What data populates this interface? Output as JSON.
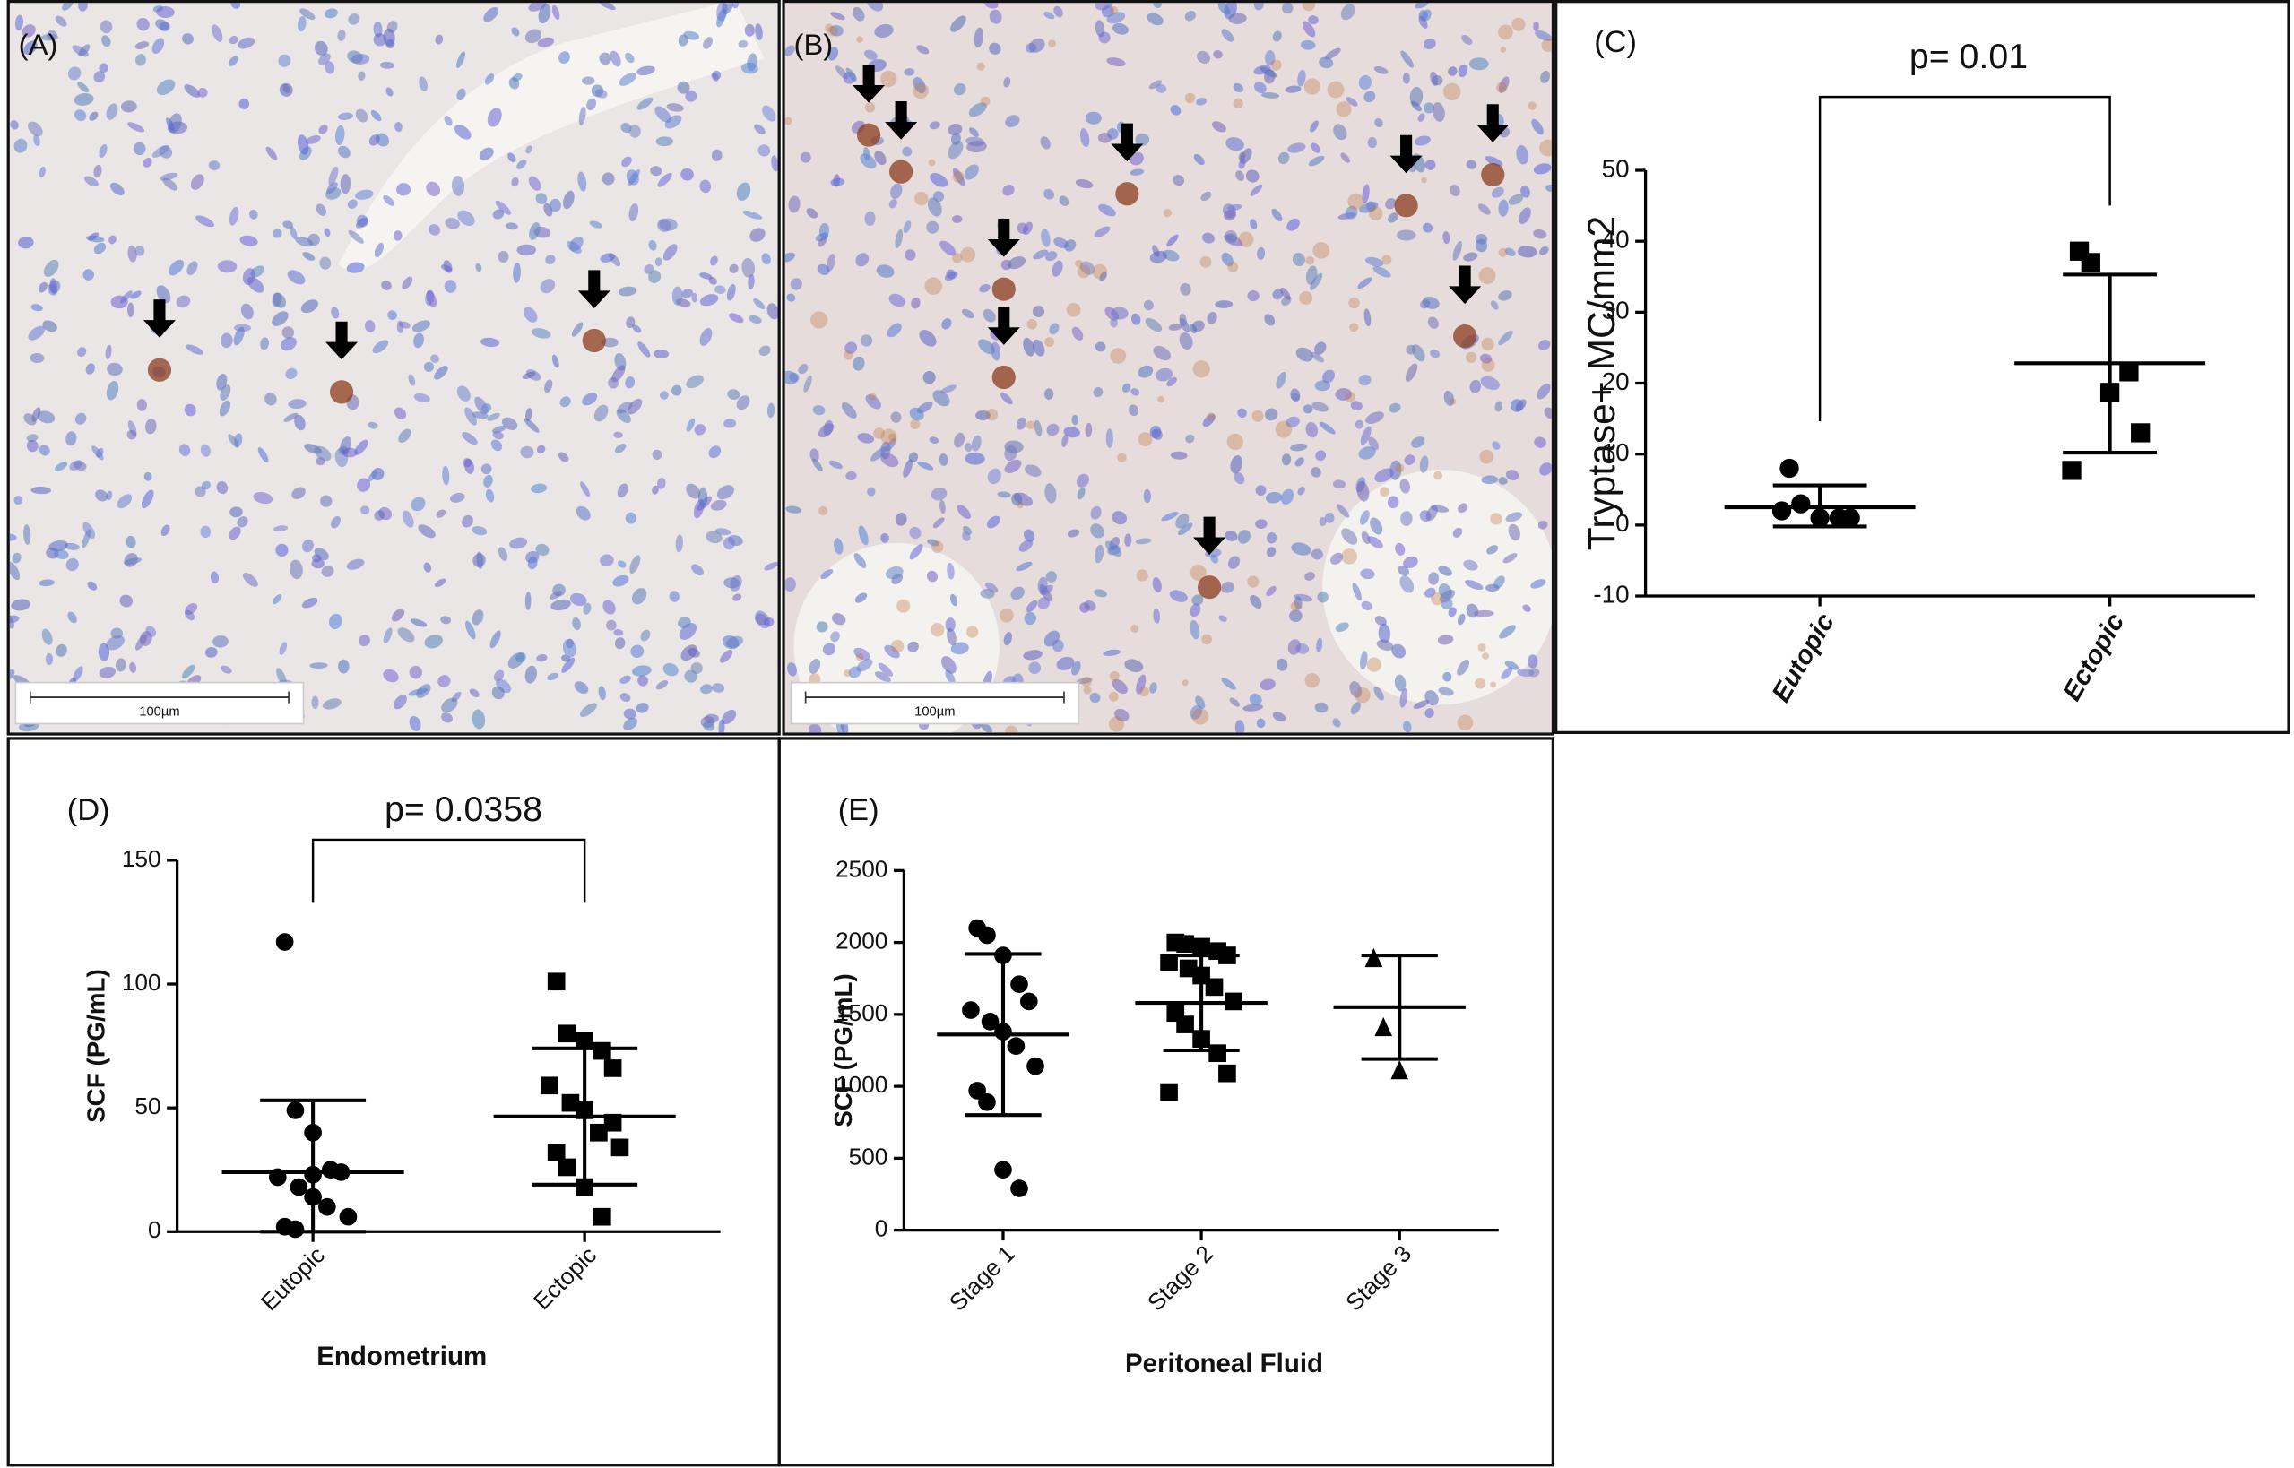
{
  "images": [
    {
      "label": "(A)",
      "scale_bar": "100µm"
    },
    {
      "label": "(B)",
      "scale_bar": "100µm"
    }
  ],
  "chart_data": [
    {
      "type": "dotplot",
      "panel_label": "(C)",
      "annotation": "p= 0.01",
      "ylabel": "Tryptase+ MC/mm2",
      "categories": [
        "Eutopic",
        "Ectopic"
      ],
      "groups": [
        {
          "marker": "circle",
          "values": [
            8,
            3,
            1,
            1,
            1,
            2
          ],
          "mean": 2.5,
          "sd_high": 5.6,
          "sd_low": -0.2
        },
        {
          "marker": "square",
          "values": [
            38.6,
            37,
            18.7,
            21.6,
            13,
            7.7
          ],
          "mean": 22.8,
          "sd_high": 35.3,
          "sd_low": 10.2
        }
      ],
      "ylim": [
        -10,
        50
      ],
      "yticks": [
        -10,
        0,
        10,
        20,
        30,
        40,
        50
      ],
      "color": "#000000"
    },
    {
      "type": "dotplot",
      "panel_label": "(D)",
      "annotation": "p= 0.0358",
      "ylabel": "SCF (PG/mL)",
      "xlabel": "Endometrium",
      "categories": [
        "Eutopic",
        "Ectopic"
      ],
      "groups": [
        {
          "marker": "circle",
          "values": [
            117,
            49,
            40,
            25,
            24,
            22,
            18,
            14,
            10,
            6,
            2,
            1,
            23
          ],
          "mean": 24,
          "sd_high": 53,
          "sd_low": 0
        },
        {
          "marker": "square",
          "values": [
            101,
            80,
            77,
            73,
            66,
            59,
            52,
            49,
            40,
            34,
            32,
            26,
            18,
            6,
            44
          ],
          "mean": 46.5,
          "sd_high": 74,
          "sd_low": 19
        }
      ],
      "ylim": [
        0,
        150
      ],
      "yticks": [
        0,
        50,
        100,
        150
      ],
      "color": "#000000"
    },
    {
      "type": "dotplot",
      "panel_label": "(E)",
      "ylabel": "SCF (PG/mL)",
      "xlabel": "Peritoneal Fluid",
      "categories": [
        "Stage 1",
        "Stage 2",
        "Stage 3"
      ],
      "groups": [
        {
          "marker": "circle",
          "values": [
            2100,
            2050,
            1910,
            1710,
            1590,
            1530,
            1450,
            1380,
            1280,
            1140,
            970,
            890,
            420,
            290
          ],
          "mean": 1360,
          "sd_high": 1920,
          "sd_low": 800
        },
        {
          "marker": "square",
          "values": [
            2000,
            1990,
            1970,
            1940,
            1910,
            1860,
            1820,
            1770,
            1690,
            1590,
            1510,
            1430,
            1330,
            1230,
            1090,
            960
          ],
          "mean": 1580,
          "sd_high": 1910,
          "sd_low": 1250
        },
        {
          "marker": "triangle",
          "values": [
            1890,
            1410,
            1110
          ],
          "mean": 1550,
          "sd_high": 1910,
          "sd_low": 1190
        }
      ],
      "ylim": [
        0,
        2500
      ],
      "yticks": [
        0,
        500,
        1000,
        1500,
        2000,
        2500
      ],
      "color": "#000000"
    }
  ]
}
